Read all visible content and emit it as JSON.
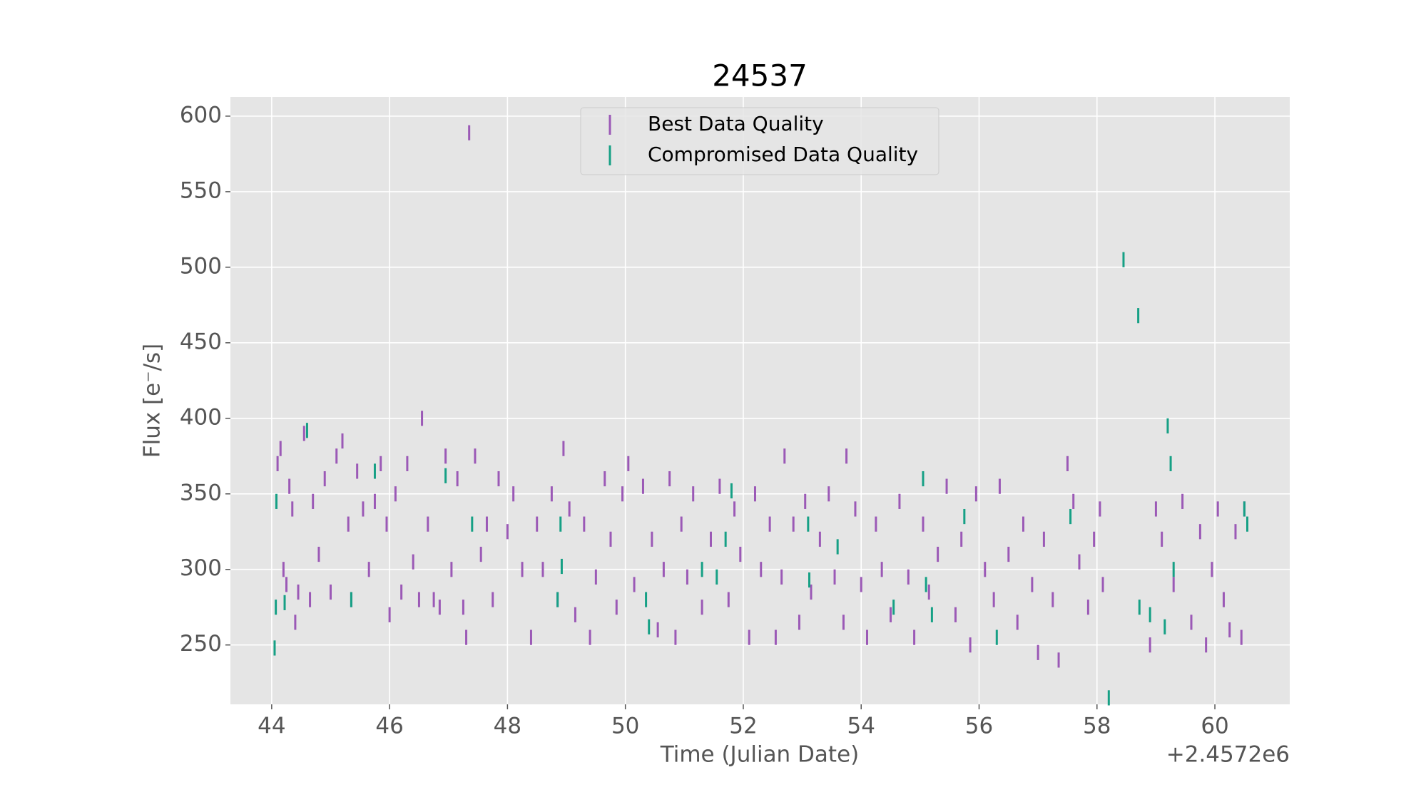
{
  "chart_data": {
    "type": "errorbar",
    "title": "24537",
    "xlabel": "Time (Julian Date)",
    "ylabel": "Flux [e⁻/s]",
    "x_offset_label": "+2.4572e6",
    "xlim": [
      43.3,
      61.27
    ],
    "ylim": [
      210.7,
      612.7
    ],
    "xticks": [
      44,
      46,
      48,
      50,
      52,
      54,
      56,
      58,
      60
    ],
    "yticks": [
      250,
      300,
      350,
      400,
      450,
      500,
      550,
      600
    ],
    "grid": true,
    "legend": "upper center",
    "series": [
      {
        "name": "Best Data Quality",
        "color": "#9b59b6",
        "yerr": 5,
        "x": [
          44.1,
          44.15,
          44.2,
          44.25,
          44.3,
          44.35,
          44.4,
          44.45,
          44.55,
          44.65,
          44.7,
          44.8,
          44.9,
          45.0,
          45.1,
          45.2,
          45.3,
          45.35,
          45.45,
          45.55,
          45.65,
          45.75,
          45.85,
          45.95,
          46.0,
          46.1,
          46.2,
          46.3,
          46.4,
          46.5,
          46.55,
          46.65,
          46.75,
          46.85,
          46.95,
          47.05,
          47.15,
          47.25,
          47.3,
          47.35,
          47.45,
          47.55,
          47.65,
          47.75,
          47.85,
          48.0,
          48.1,
          48.25,
          48.4,
          48.5,
          48.6,
          48.75,
          48.85,
          48.95,
          49.05,
          49.15,
          49.3,
          49.4,
          49.5,
          49.65,
          49.75,
          49.85,
          49.95,
          50.05,
          50.15,
          50.3,
          50.45,
          50.55,
          50.65,
          50.75,
          50.85,
          50.95,
          51.05,
          51.15,
          51.3,
          51.45,
          51.6,
          51.75,
          51.85,
          51.95,
          52.1,
          52.2,
          52.3,
          52.45,
          52.55,
          52.65,
          52.7,
          52.85,
          52.95,
          53.05,
          53.15,
          53.3,
          53.45,
          53.55,
          53.7,
          53.75,
          53.9,
          54.0,
          54.1,
          54.25,
          54.35,
          54.5,
          54.65,
          54.8,
          54.9,
          55.05,
          55.15,
          55.3,
          55.45,
          55.6,
          55.7,
          55.85,
          55.95,
          56.1,
          56.25,
          56.35,
          56.5,
          56.65,
          56.75,
          56.9,
          57.0,
          57.1,
          57.25,
          57.35,
          57.5,
          57.6,
          57.7,
          57.85,
          57.95,
          58.05,
          58.1,
          58.9,
          59.0,
          59.1,
          59.3,
          59.45,
          59.6,
          59.75,
          59.85,
          59.95,
          60.05,
          60.15,
          60.25,
          60.35,
          60.45,
          60.5
        ],
        "values": [
          370,
          380,
          300,
          290,
          355,
          340,
          265,
          285,
          390,
          280,
          345,
          310,
          360,
          285,
          375,
          385,
          330,
          280,
          365,
          340,
          300,
          345,
          370,
          330,
          270,
          350,
          285,
          370,
          305,
          280,
          400,
          330,
          280,
          275,
          375,
          300,
          360,
          275,
          255,
          589,
          375,
          310,
          330,
          280,
          360,
          325,
          350,
          300,
          255,
          330,
          300,
          350,
          280,
          380,
          340,
          270,
          330,
          255,
          295,
          360,
          320,
          275,
          350,
          370,
          290,
          355,
          320,
          260,
          300,
          360,
          255,
          330,
          295,
          350,
          275,
          320,
          355,
          280,
          340,
          310,
          255,
          350,
          300,
          330,
          255,
          295,
          375,
          330,
          265,
          345,
          285,
          320,
          350,
          295,
          265,
          375,
          340,
          290,
          255,
          330,
          300,
          270,
          345,
          295,
          255,
          330,
          285,
          310,
          355,
          270,
          320,
          250,
          350,
          300,
          280,
          355,
          310,
          265,
          330,
          290,
          245,
          320,
          280,
          240,
          370,
          345,
          305,
          275,
          320,
          340,
          290,
          250,
          340,
          320,
          290,
          345,
          265,
          325,
          250,
          300,
          340,
          280,
          260,
          325,
          255,
          340
        ]
      },
      {
        "name": "Compromised Data Quality",
        "color": "#16a085",
        "yerr": 5,
        "x": [
          44.05,
          44.07,
          44.08,
          44.22,
          44.6,
          45.35,
          45.75,
          46.95,
          47.4,
          48.85,
          48.9,
          48.92,
          50.35,
          50.4,
          51.3,
          51.55,
          51.7,
          51.8,
          53.1,
          53.12,
          53.6,
          54.55,
          55.05,
          55.1,
          55.2,
          55.75,
          56.3,
          57.55,
          58.2,
          58.45,
          58.7,
          58.72,
          58.9,
          59.15,
          59.2,
          59.25,
          59.3,
          60.5,
          60.55
        ],
        "values": [
          248,
          275,
          345,
          278,
          392,
          280,
          365,
          362,
          330,
          280,
          330,
          302,
          280,
          262,
          300,
          295,
          320,
          352,
          330,
          293,
          315,
          275,
          360,
          290,
          270,
          335,
          255,
          335,
          215,
          505,
          468,
          275,
          270,
          262,
          395,
          370,
          300,
          340,
          330
        ]
      }
    ]
  }
}
